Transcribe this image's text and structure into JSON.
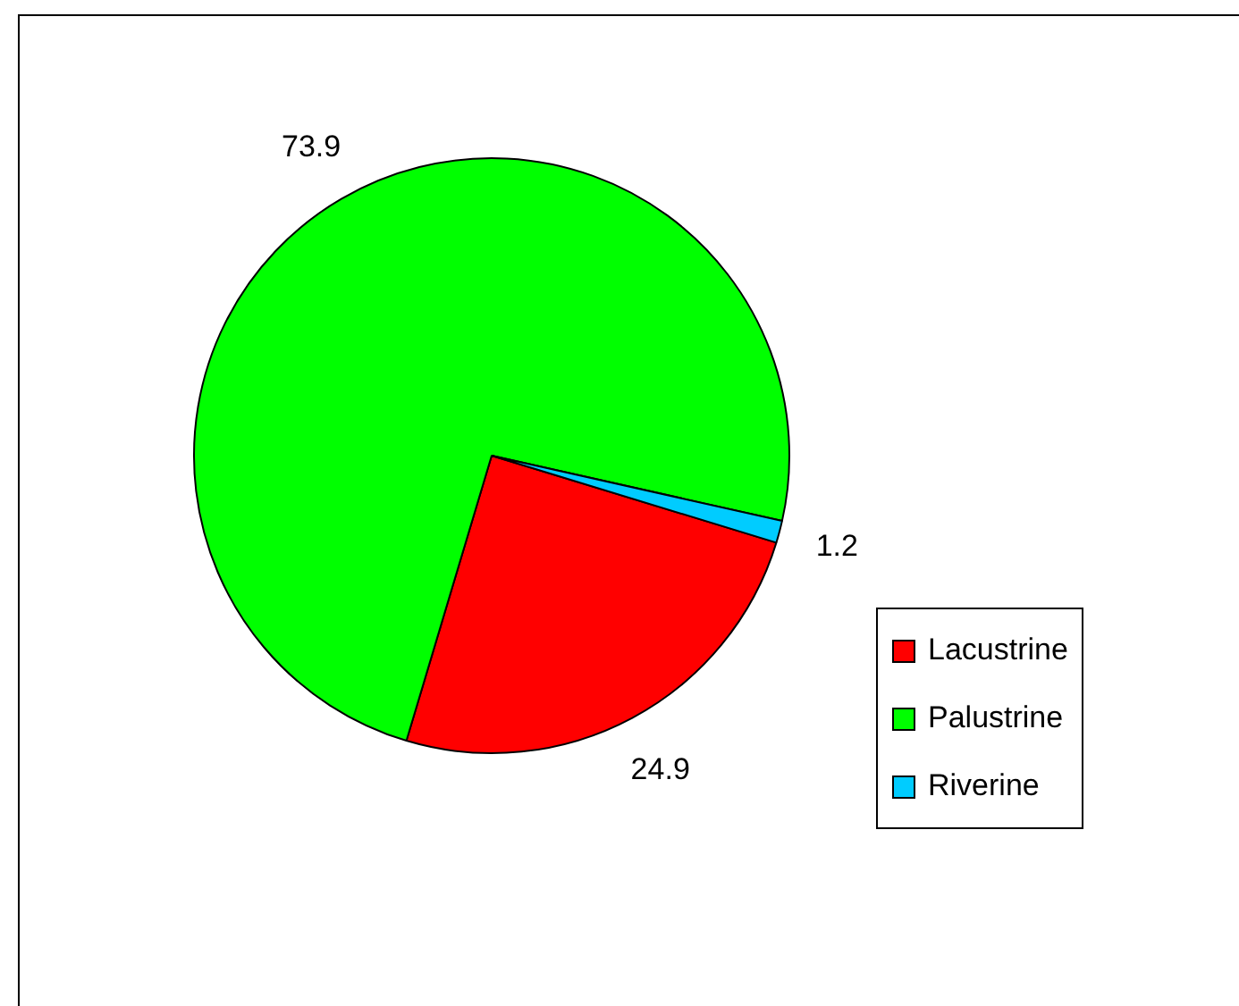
{
  "chart_data": {
    "type": "pie",
    "categories": [
      "Lacustrine",
      "Palustrine",
      "Riverine"
    ],
    "values": [
      24.9,
      73.9,
      1.2
    ],
    "colors": [
      "#ff0000",
      "#00ff00",
      "#00ccff"
    ],
    "data_labels": true,
    "legend": "right"
  }
}
